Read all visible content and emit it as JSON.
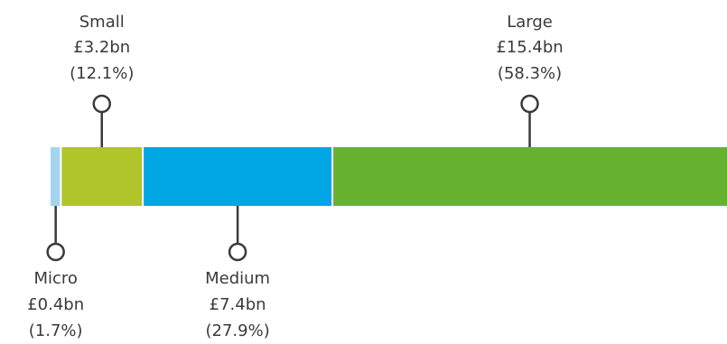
{
  "chart_data": {
    "type": "bar",
    "orientation": "horizontal-stacked",
    "categories": [
      "Micro",
      "Small",
      "Medium",
      "Large"
    ],
    "values": [
      0.4,
      3.2,
      7.4,
      15.4
    ],
    "unit": "£bn",
    "series": [
      {
        "name": "Micro",
        "value": 0.4,
        "value_label": "£0.4bn",
        "share_label": "(1.7%)",
        "color": "#a5d4f3",
        "callout": "below"
      },
      {
        "name": "Small",
        "value": 3.2,
        "value_label": "£3.2bn",
        "share_label": "(12.1%)",
        "color": "#b0c52a",
        "callout": "above"
      },
      {
        "name": "Medium",
        "value": 7.4,
        "value_label": "£7.4bn",
        "share_label": "(27.9%)",
        "color": "#00a7e4",
        "callout": "below"
      },
      {
        "name": "Large",
        "value": 15.4,
        "value_label": "£15.4bn",
        "share_label": "(58.3%)",
        "color": "#66b22e",
        "callout": "above"
      }
    ],
    "title": "",
    "xlabel": "",
    "ylabel": "",
    "legend": "none",
    "grid": false,
    "callout_line_color": "#3a3a3a",
    "segment_separator_color": "#ffffff"
  }
}
